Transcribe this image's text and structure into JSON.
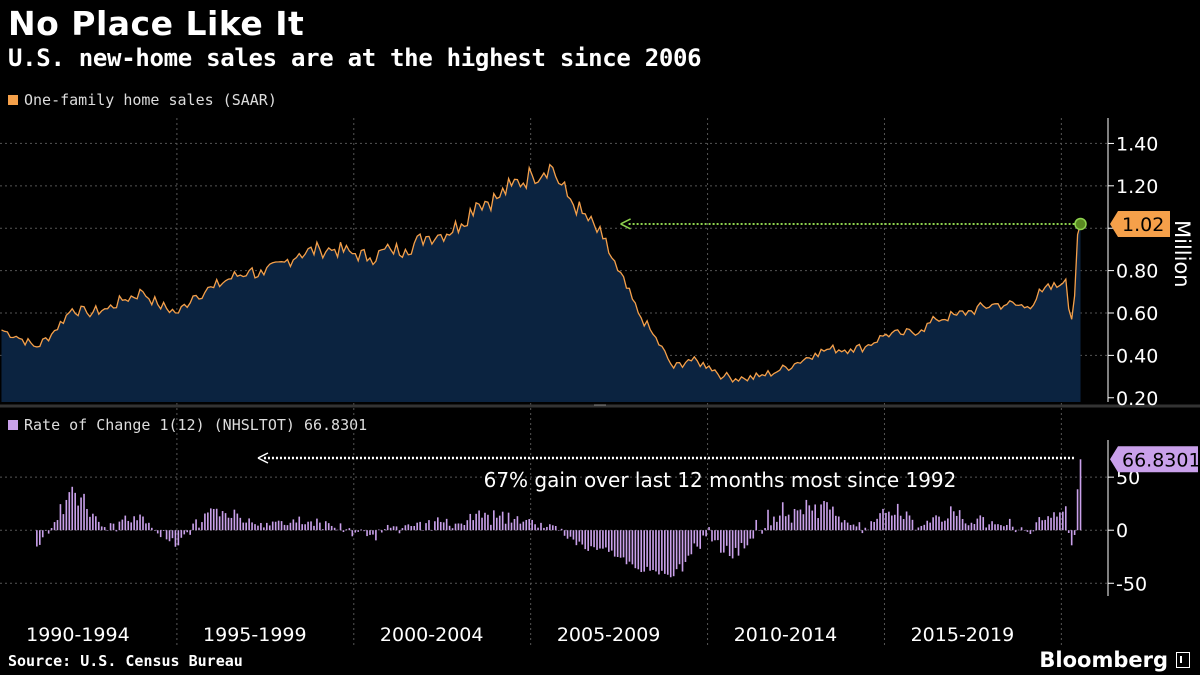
{
  "header": {
    "title": "No Place Like It",
    "subtitle": "U.S. new-home sales are at the highest since 2006"
  },
  "footer": {
    "source": "Source: U.S. Census Bureau",
    "brand": "Bloomberg"
  },
  "colors": {
    "background": "#000000",
    "sales_line": "#f5a04a",
    "sales_fill": "#0b2340",
    "roc_bar": "#c9a0ea",
    "arrow_green": "#8ed24e",
    "grid": "#555555"
  },
  "chart_data": [
    {
      "type": "area",
      "legend": "One-family home sales (SAAR)",
      "unit_label": "Million",
      "y_ticks": [
        "1.40",
        "1.20",
        "1.00",
        "0.80",
        "0.60",
        "0.40",
        "0.20"
      ],
      "y_tick_values": [
        1.4,
        1.2,
        1.0,
        0.8,
        0.6,
        0.4,
        0.2
      ],
      "ylim": [
        0.18,
        1.52
      ],
      "last_value_label": "1.02",
      "start": "1990-01",
      "end": "2020-07",
      "anchors": [
        [
          "1990-01",
          0.52
        ],
        [
          "1990-06",
          0.49
        ],
        [
          "1991-01",
          0.44
        ],
        [
          "1991-06",
          0.5
        ],
        [
          "1992-01",
          0.62
        ],
        [
          "1992-06",
          0.6
        ],
        [
          "1993-01",
          0.62
        ],
        [
          "1993-06",
          0.66
        ],
        [
          "1994-01",
          0.7
        ],
        [
          "1994-06",
          0.64
        ],
        [
          "1995-01",
          0.6
        ],
        [
          "1995-06",
          0.68
        ],
        [
          "1996-01",
          0.72
        ],
        [
          "1996-06",
          0.76
        ],
        [
          "1997-01",
          0.8
        ],
        [
          "1997-06",
          0.78
        ],
        [
          "1998-01",
          0.84
        ],
        [
          "1998-06",
          0.88
        ],
        [
          "1999-01",
          0.9
        ],
        [
          "1999-06",
          0.9
        ],
        [
          "2000-01",
          0.88
        ],
        [
          "2000-06",
          0.86
        ],
        [
          "2001-01",
          0.9
        ],
        [
          "2001-06",
          0.9
        ],
        [
          "2002-01",
          0.96
        ],
        [
          "2002-06",
          0.97
        ],
        [
          "2003-01",
          1.02
        ],
        [
          "2003-06",
          1.12
        ],
        [
          "2004-01",
          1.14
        ],
        [
          "2004-06",
          1.2
        ],
        [
          "2005-01",
          1.25
        ],
        [
          "2005-07",
          1.3
        ],
        [
          "2006-01",
          1.15
        ],
        [
          "2006-06",
          1.07
        ],
        [
          "2007-01",
          0.95
        ],
        [
          "2007-06",
          0.8
        ],
        [
          "2008-01",
          0.6
        ],
        [
          "2008-06",
          0.5
        ],
        [
          "2009-01",
          0.34
        ],
        [
          "2009-06",
          0.38
        ],
        [
          "2010-01",
          0.35
        ],
        [
          "2010-06",
          0.3
        ],
        [
          "2011-01",
          0.29
        ],
        [
          "2011-06",
          0.3
        ],
        [
          "2012-01",
          0.33
        ],
        [
          "2012-06",
          0.36
        ],
        [
          "2013-01",
          0.41
        ],
        [
          "2013-06",
          0.43
        ],
        [
          "2014-01",
          0.43
        ],
        [
          "2014-06",
          0.44
        ],
        [
          "2015-01",
          0.5
        ],
        [
          "2015-06",
          0.5
        ],
        [
          "2016-01",
          0.52
        ],
        [
          "2016-06",
          0.57
        ],
        [
          "2017-01",
          0.59
        ],
        [
          "2017-06",
          0.61
        ],
        [
          "2018-01",
          0.64
        ],
        [
          "2018-06",
          0.64
        ],
        [
          "2019-01",
          0.63
        ],
        [
          "2019-06",
          0.7
        ],
        [
          "2019-12",
          0.73
        ],
        [
          "2020-01",
          0.74
        ],
        [
          "2020-02",
          0.76
        ],
        [
          "2020-03",
          0.62
        ],
        [
          "2020-04",
          0.57
        ],
        [
          "2020-05",
          0.68
        ],
        [
          "2020-06",
          0.97
        ],
        [
          "2020-07",
          1.02
        ]
      ]
    },
    {
      "type": "bar",
      "legend": "Rate of Change 1(12) (NHSLTOT) 66.8301",
      "y_ticks": [
        "50",
        "0",
        "-50"
      ],
      "y_tick_values": [
        50,
        0,
        -50
      ],
      "ylim": [
        -62,
        85
      ],
      "last_value_label": "66.8301",
      "annotation": "67% gain over last 12 months most since 1992",
      "x_tick_labels": [
        "1990-1994",
        "1995-1999",
        "2000-2004",
        "2005-2009",
        "2010-2014",
        "2015-2019"
      ]
    }
  ]
}
